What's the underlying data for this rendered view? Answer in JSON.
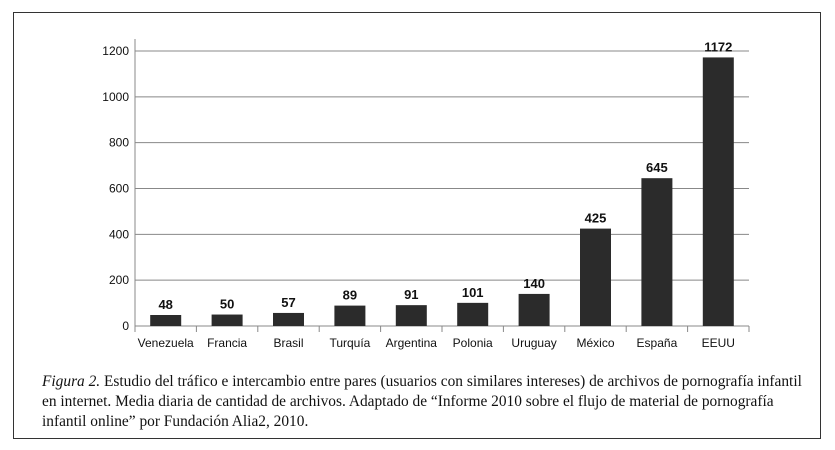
{
  "chart_data": {
    "type": "bar",
    "categories": [
      "Venezuela",
      "Francia",
      "Brasil",
      "Turquía",
      "Argentina",
      "Polonia",
      "Uruguay",
      "México",
      "España",
      "EEUU"
    ],
    "values": [
      48,
      50,
      57,
      89,
      91,
      101,
      140,
      425,
      645,
      1172
    ],
    "title": "",
    "xlabel": "",
    "ylabel": "",
    "ylim": [
      0,
      1200
    ],
    "yticks": [
      0,
      200,
      400,
      600,
      800,
      1000,
      1200
    ],
    "grid": true,
    "bar_color": "#2b2b2b"
  },
  "caption": {
    "label": "Figura 2.",
    "text": " Estudio del tráfico e intercambio entre pares (usuarios con similares intereses) de archivos de pornografía infantil en internet. Media diaria de cantidad de archivos. Adaptado de “Informe 2010 sobre el flujo de material de pornografía infantil online” por Fundación Alia2, 2010."
  }
}
